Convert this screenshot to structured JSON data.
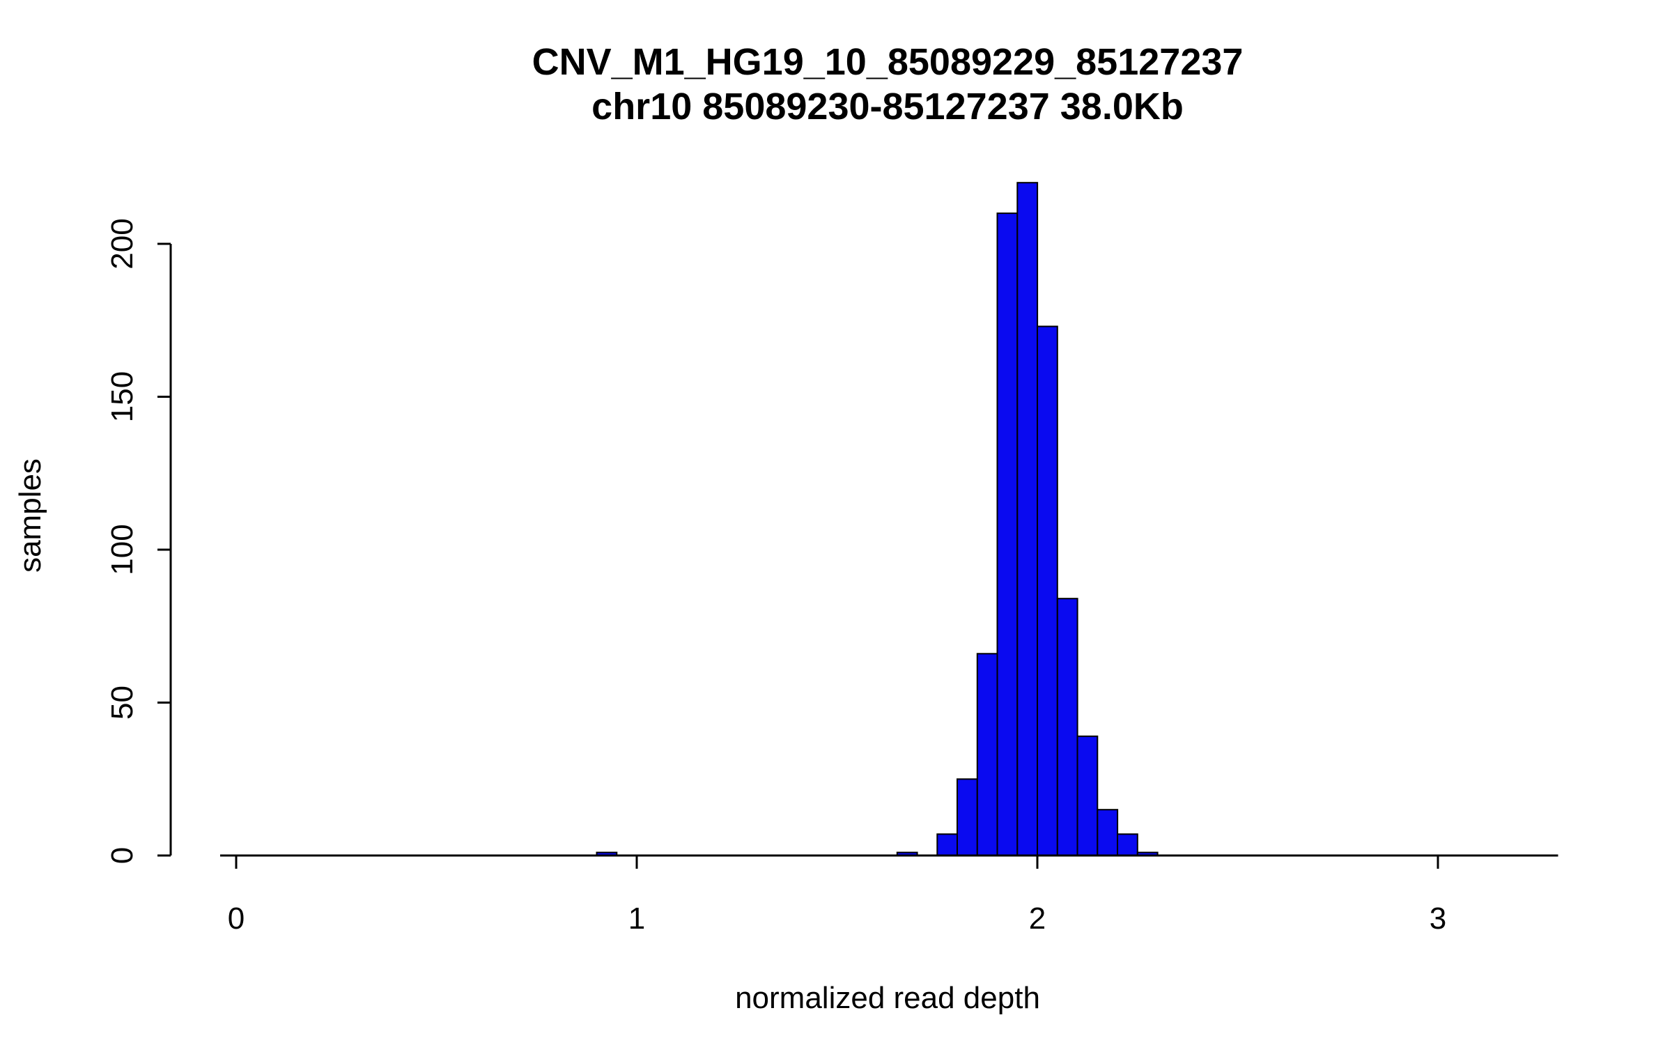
{
  "figure": {
    "title": "CNV_M1_HG19_10_85089229_85127237",
    "subtitle": "chr10 85089230-85127237 38.0Kb",
    "xlabel": "normalized read depth",
    "ylabel": "samples"
  },
  "chart_data": {
    "type": "bar",
    "subtype": "histogram",
    "title": "CNV_M1_HG19_10_85089229_85127237",
    "subtitle": "chr10 85089230-85127237 38.0Kb",
    "xlabel": "normalized read depth",
    "ylabel": "samples",
    "bar_color": "#0a0af0",
    "bar_edge_color": "#000000",
    "axis_color": "#000000",
    "bin_width": 0.05,
    "bins": [
      {
        "x": 0.9,
        "count": 1
      },
      {
        "x": 1.65,
        "count": 1
      },
      {
        "x": 1.75,
        "count": 7
      },
      {
        "x": 1.8,
        "count": 25
      },
      {
        "x": 1.85,
        "count": 66
      },
      {
        "x": 1.9,
        "count": 210
      },
      {
        "x": 1.95,
        "count": 220
      },
      {
        "x": 2.0,
        "count": 173
      },
      {
        "x": 2.05,
        "count": 84
      },
      {
        "x": 2.1,
        "count": 39
      },
      {
        "x": 2.15,
        "count": 15
      },
      {
        "x": 2.2,
        "count": 7
      },
      {
        "x": 2.25,
        "count": 1
      }
    ],
    "x_ticks": [
      0,
      1,
      2,
      3
    ],
    "y_ticks": [
      0,
      50,
      100,
      150,
      200
    ],
    "xlim": [
      -0.04,
      3.3
    ],
    "ylim": [
      0,
      220
    ],
    "grid": false,
    "legend": "none"
  }
}
